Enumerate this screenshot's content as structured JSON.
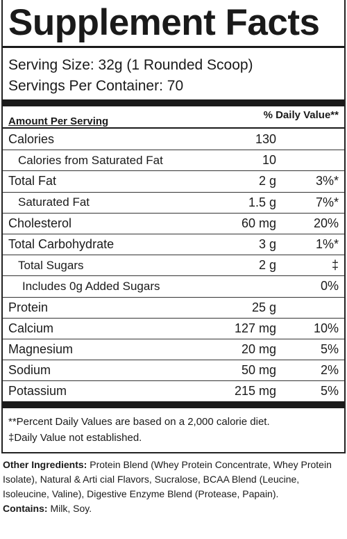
{
  "title": "Supplement Facts",
  "serving_size": "Serving Size: 32g (1 Rounded Scoop)",
  "servings_per_container": "Servings Per Container: 70",
  "header": {
    "amount_per_serving": "Amount Per Serving",
    "daily_value": "% Daily Value**"
  },
  "rows": [
    {
      "name": "Calories",
      "amount": "130"
    },
    {
      "name": "Calories from Saturated Fat",
      "amount": "10"
    },
    {
      "name": "Total Fat",
      "amount": "2 g",
      "dv": "3%*"
    },
    {
      "name": "Saturated Fat",
      "amount": "1.5 g",
      "dv": "7%*"
    },
    {
      "name": "Cholesterol",
      "amount": "60 mg",
      "dv": "20%"
    },
    {
      "name": "Total Carbohydrate",
      "amount": "3 g",
      "dv": "1%*"
    },
    {
      "name": "Total Sugars",
      "amount": "2 g",
      "dv": "‡"
    },
    {
      "name": "Includes 0g Added Sugars",
      "dv": "0%"
    },
    {
      "name": "Protein",
      "amount": "25 g"
    },
    {
      "name": "Calcium",
      "amount": "127 mg",
      "dv": "10%"
    },
    {
      "name": "Magnesium",
      "amount": "20 mg",
      "dv": "5%"
    },
    {
      "name": "Sodium",
      "amount": "50 mg",
      "dv": "2%"
    },
    {
      "name": "Potassium",
      "amount": "215 mg",
      "dv": "5%"
    }
  ],
  "footnotes": [
    "**Percent Daily Values are based on a 2,000 calorie diet.",
    "‡Daily Value not established."
  ],
  "ingredients": {
    "label": "Other Ingredients:",
    "text": " Protein Blend (Whey Protein Concentrate, Whey Protein Isolate), Natural & Arti cial Flavors, Sucralose, BCAA Blend (Leucine, Isoleucine, Valine), Digestive Enzyme Blend (Protease, Papain)."
  },
  "contains": {
    "label": "Contains:",
    "text": " Milk, Soy."
  }
}
